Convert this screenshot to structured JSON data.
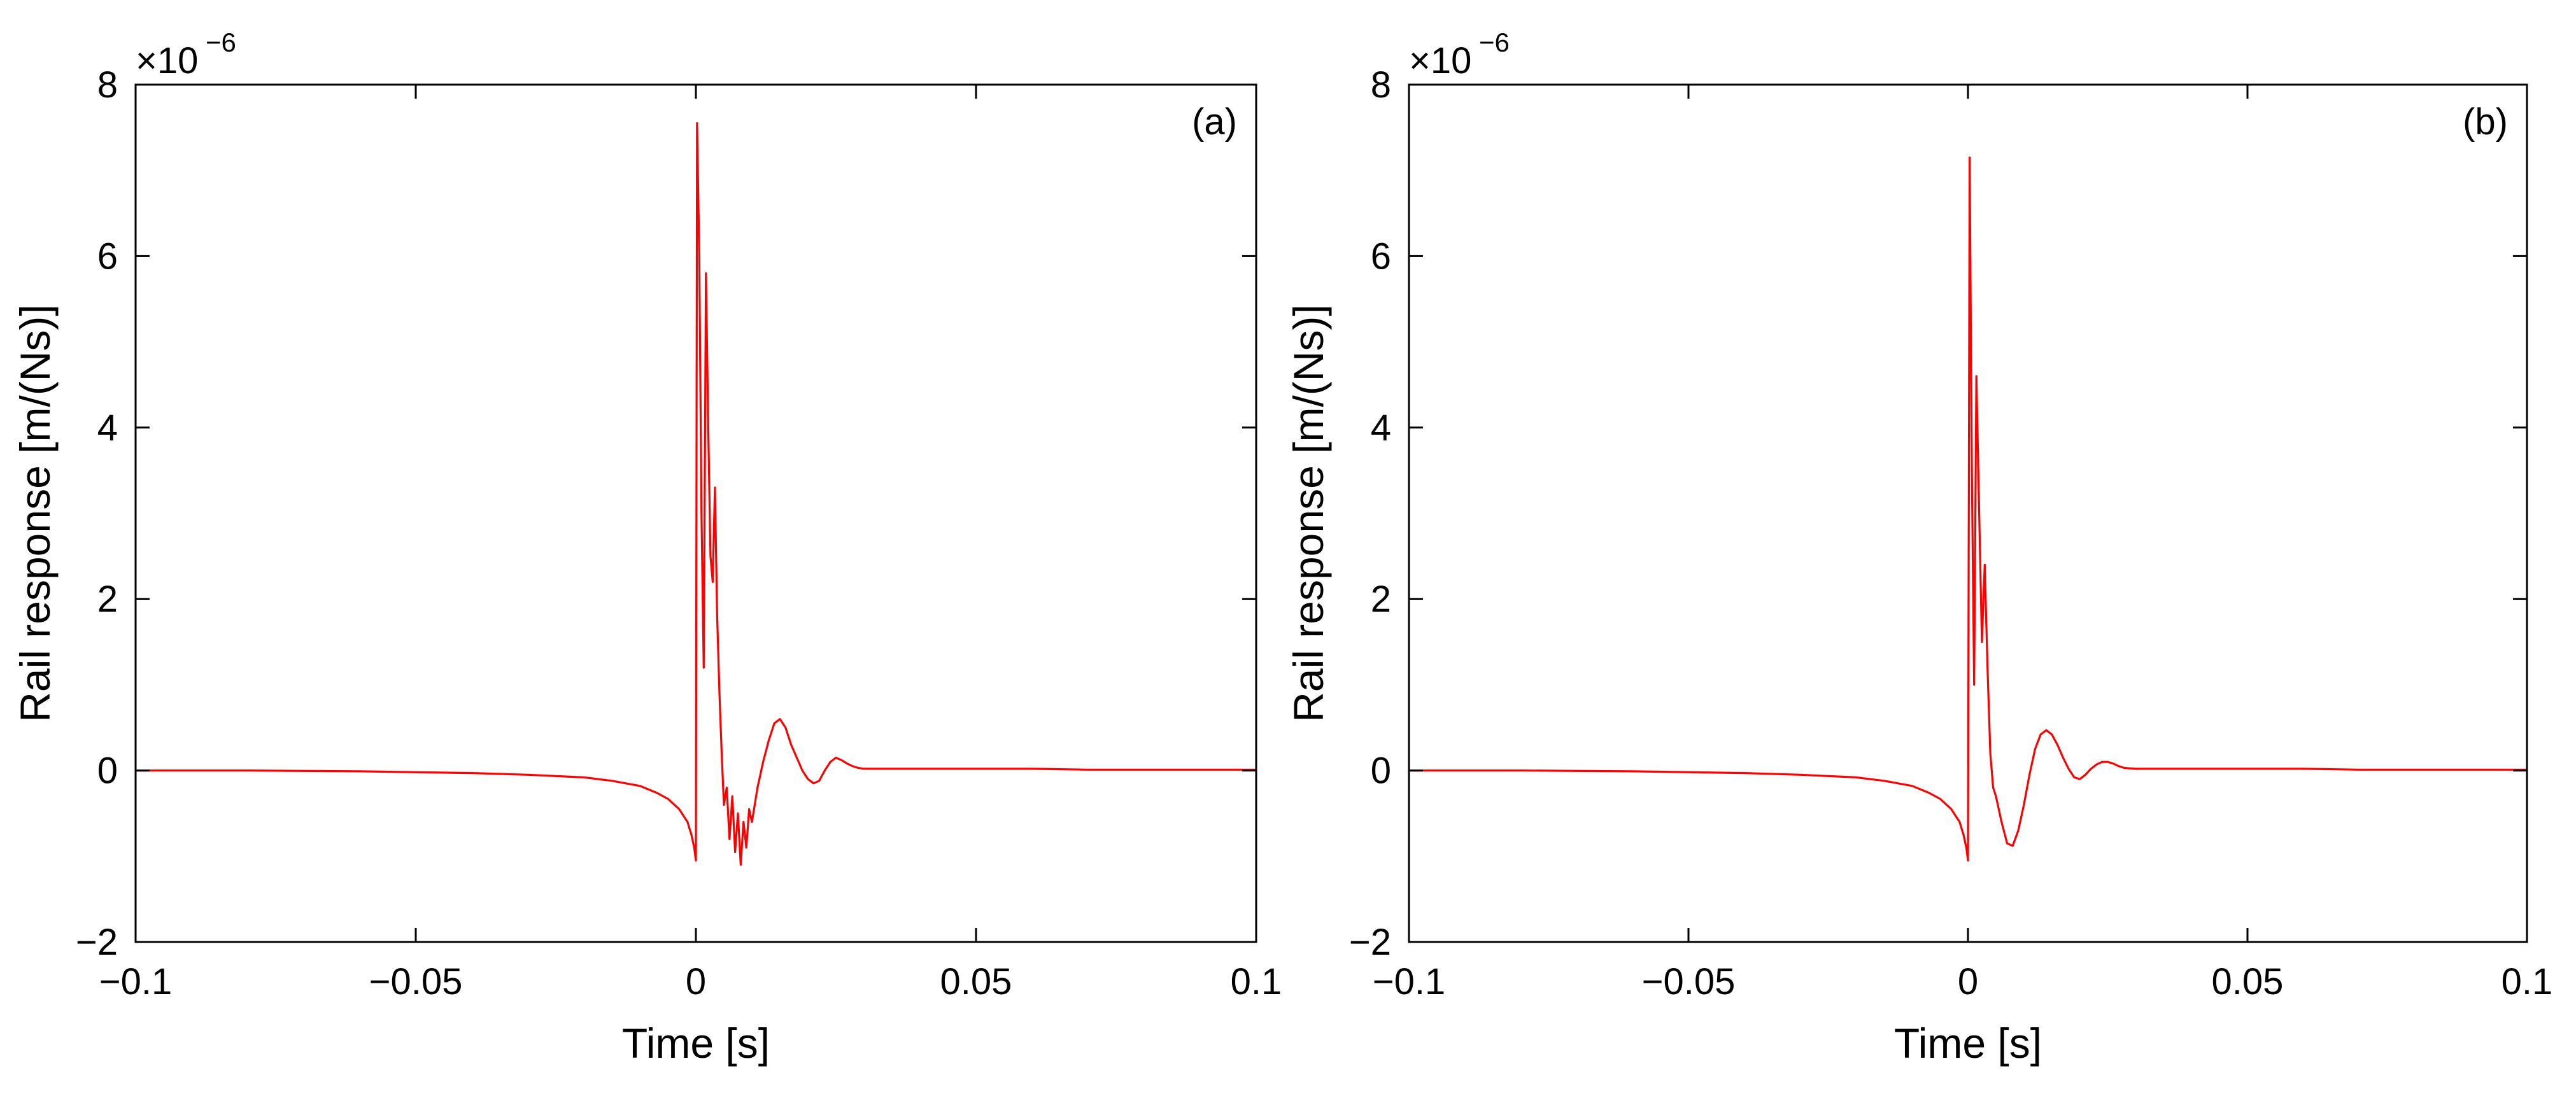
{
  "chart_data": [
    {
      "type": "line",
      "panel_label": "(a)",
      "xlabel": "Time [s]",
      "ylabel": "Rail response [m/(Ns)]",
      "y_scale_base": "×10",
      "y_scale_exponent": "−6",
      "xlim": [
        -0.1,
        0.1
      ],
      "ylim": [
        -2,
        8
      ],
      "x_ticks": [
        -0.1,
        -0.05,
        0,
        0.05,
        0.1
      ],
      "x_tick_labels": [
        "−0.1",
        "−0.05",
        "0",
        "0.05",
        "0.1"
      ],
      "y_ticks": [
        -2,
        0,
        2,
        4,
        6,
        8
      ],
      "y_tick_labels": [
        "−2",
        "0",
        "2",
        "4",
        "6",
        "8"
      ],
      "grid": false,
      "line_color": "#ff0000",
      "x": [
        -0.1,
        -0.08,
        -0.06,
        -0.04,
        -0.03,
        -0.02,
        -0.015,
        -0.01,
        -0.007,
        -0.005,
        -0.003,
        -0.0015,
        -0.0008,
        -0.0003,
        0,
        0.0002,
        0.0006,
        0.001,
        0.0014,
        0.0018,
        0.0022,
        0.0026,
        0.003,
        0.0034,
        0.0038,
        0.0042,
        0.0046,
        0.005,
        0.0055,
        0.006,
        0.0065,
        0.007,
        0.0075,
        0.008,
        0.0085,
        0.009,
        0.0095,
        0.01,
        0.011,
        0.012,
        0.013,
        0.014,
        0.015,
        0.016,
        0.017,
        0.018,
        0.019,
        0.02,
        0.021,
        0.022,
        0.023,
        0.024,
        0.025,
        0.026,
        0.027,
        0.028,
        0.029,
        0.03,
        0.032,
        0.035,
        0.04,
        0.05,
        0.06,
        0.07,
        0.08,
        0.09,
        0.1
      ],
      "y": [
        0,
        0,
        -0.01,
        -0.03,
        -0.05,
        -0.08,
        -0.12,
        -0.18,
        -0.26,
        -0.33,
        -0.45,
        -0.6,
        -0.75,
        -0.9,
        -1.05,
        7.55,
        6.0,
        3.0,
        1.2,
        5.8,
        4.0,
        2.5,
        2.2,
        3.3,
        1.8,
        0.9,
        0.2,
        -0.4,
        -0.2,
        -0.8,
        -0.3,
        -0.95,
        -0.5,
        -1.1,
        -0.6,
        -0.9,
        -0.45,
        -0.6,
        -0.2,
        0.1,
        0.35,
        0.55,
        0.6,
        0.5,
        0.3,
        0.15,
        0.0,
        -0.1,
        -0.15,
        -0.12,
        0.0,
        0.1,
        0.15,
        0.12,
        0.08,
        0.05,
        0.03,
        0.02,
        0.02,
        0.02,
        0.02,
        0.02,
        0.02,
        0.01,
        0.01,
        0.01,
        0.01
      ]
    },
    {
      "type": "line",
      "panel_label": "(b)",
      "xlabel": "Time [s]",
      "ylabel": "Rail response [m/(Ns)]",
      "y_scale_base": "×10",
      "y_scale_exponent": "−6",
      "xlim": [
        -0.1,
        0.1
      ],
      "ylim": [
        -2,
        8
      ],
      "x_ticks": [
        -0.1,
        -0.05,
        0,
        0.05,
        0.1
      ],
      "x_tick_labels": [
        "−0.1",
        "−0.05",
        "0",
        "0.05",
        "0.1"
      ],
      "y_ticks": [
        -2,
        0,
        2,
        4,
        6,
        8
      ],
      "y_tick_labels": [
        "−2",
        "0",
        "2",
        "4",
        "6",
        "8"
      ],
      "grid": false,
      "line_color": "#ff0000",
      "x": [
        -0.1,
        -0.08,
        -0.06,
        -0.04,
        -0.03,
        -0.02,
        -0.015,
        -0.01,
        -0.007,
        -0.005,
        -0.003,
        -0.0015,
        -0.0008,
        -0.0003,
        0,
        0.0003,
        0.0007,
        0.0011,
        0.0015,
        0.002,
        0.0025,
        0.003,
        0.0035,
        0.004,
        0.0045,
        0.005,
        0.006,
        0.007,
        0.008,
        0.009,
        0.01,
        0.011,
        0.012,
        0.013,
        0.014,
        0.015,
        0.016,
        0.017,
        0.018,
        0.019,
        0.02,
        0.021,
        0.022,
        0.023,
        0.024,
        0.025,
        0.026,
        0.027,
        0.028,
        0.03,
        0.033,
        0.04,
        0.05,
        0.06,
        0.07,
        0.08,
        0.09,
        0.1
      ],
      "y": [
        0,
        0,
        -0.01,
        -0.03,
        -0.05,
        -0.08,
        -0.12,
        -0.18,
        -0.26,
        -0.33,
        -0.45,
        -0.6,
        -0.75,
        -0.9,
        -1.05,
        7.15,
        3.5,
        1.0,
        4.6,
        3.0,
        1.5,
        2.4,
        1.2,
        0.2,
        -0.2,
        -0.3,
        -0.6,
        -0.85,
        -0.88,
        -0.7,
        -0.4,
        -0.05,
        0.25,
        0.42,
        0.47,
        0.42,
        0.3,
        0.15,
        0.02,
        -0.08,
        -0.1,
        -0.05,
        0.02,
        0.07,
        0.1,
        0.1,
        0.08,
        0.05,
        0.03,
        0.02,
        0.02,
        0.02,
        0.02,
        0.02,
        0.01,
        0.01,
        0.01,
        0.01
      ]
    }
  ]
}
